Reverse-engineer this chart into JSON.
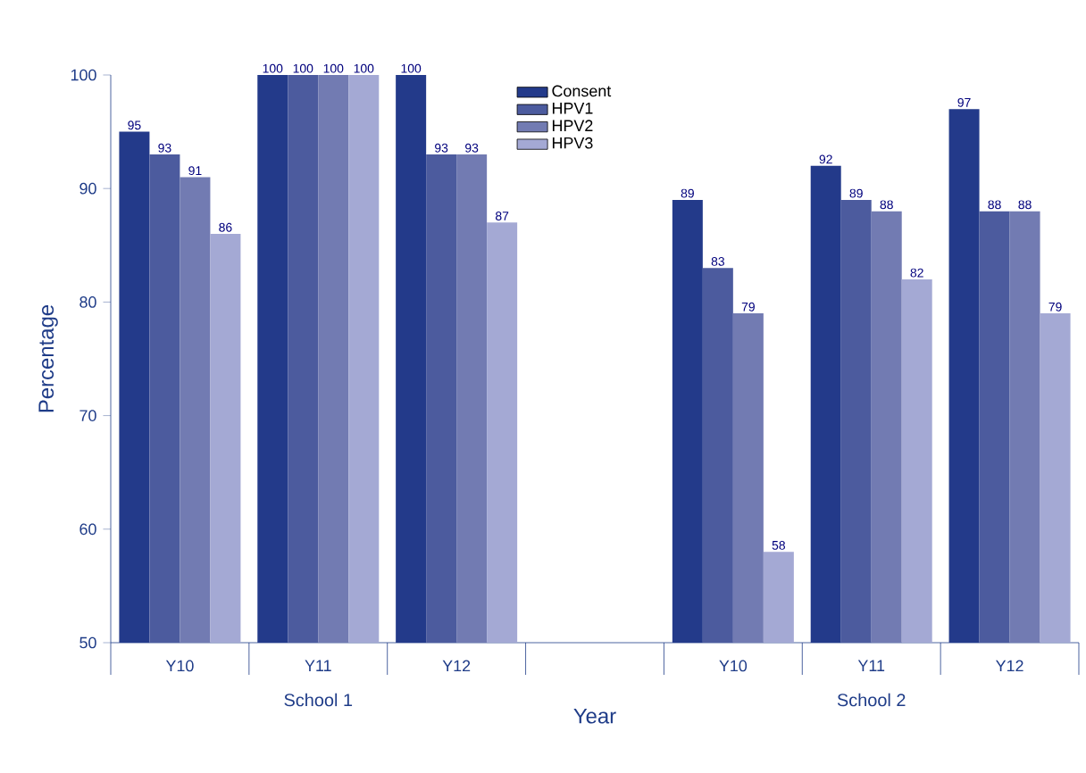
{
  "chart_data": {
    "type": "bar",
    "xlabel": "Year",
    "ylabel": "Percentage",
    "categories": [
      "Y10",
      "Y11",
      "Y12",
      null,
      "Y10",
      "Y11",
      "Y12"
    ],
    "series": [
      {
        "name": "Consent",
        "color": "#233a8a",
        "values": [
          95,
          100,
          100,
          null,
          89,
          92,
          97
        ]
      },
      {
        "name": "HPV1",
        "color": "#4c5b9e",
        "values": [
          93,
          100,
          93,
          null,
          83,
          89,
          88
        ]
      },
      {
        "name": "HPV2",
        "color": "#727bb2",
        "values": [
          91,
          100,
          93,
          null,
          79,
          88,
          88
        ]
      },
      {
        "name": "HPV3",
        "color": "#a4a9d4",
        "values": [
          86,
          100,
          87,
          null,
          58,
          82,
          79
        ]
      }
    ],
    "ylim": [
      50,
      100
    ],
    "yticks": [
      50,
      60,
      70,
      80,
      90,
      100
    ],
    "data_labels": true,
    "legend": "top",
    "annotations": [
      "School 1",
      "School 2"
    ]
  }
}
